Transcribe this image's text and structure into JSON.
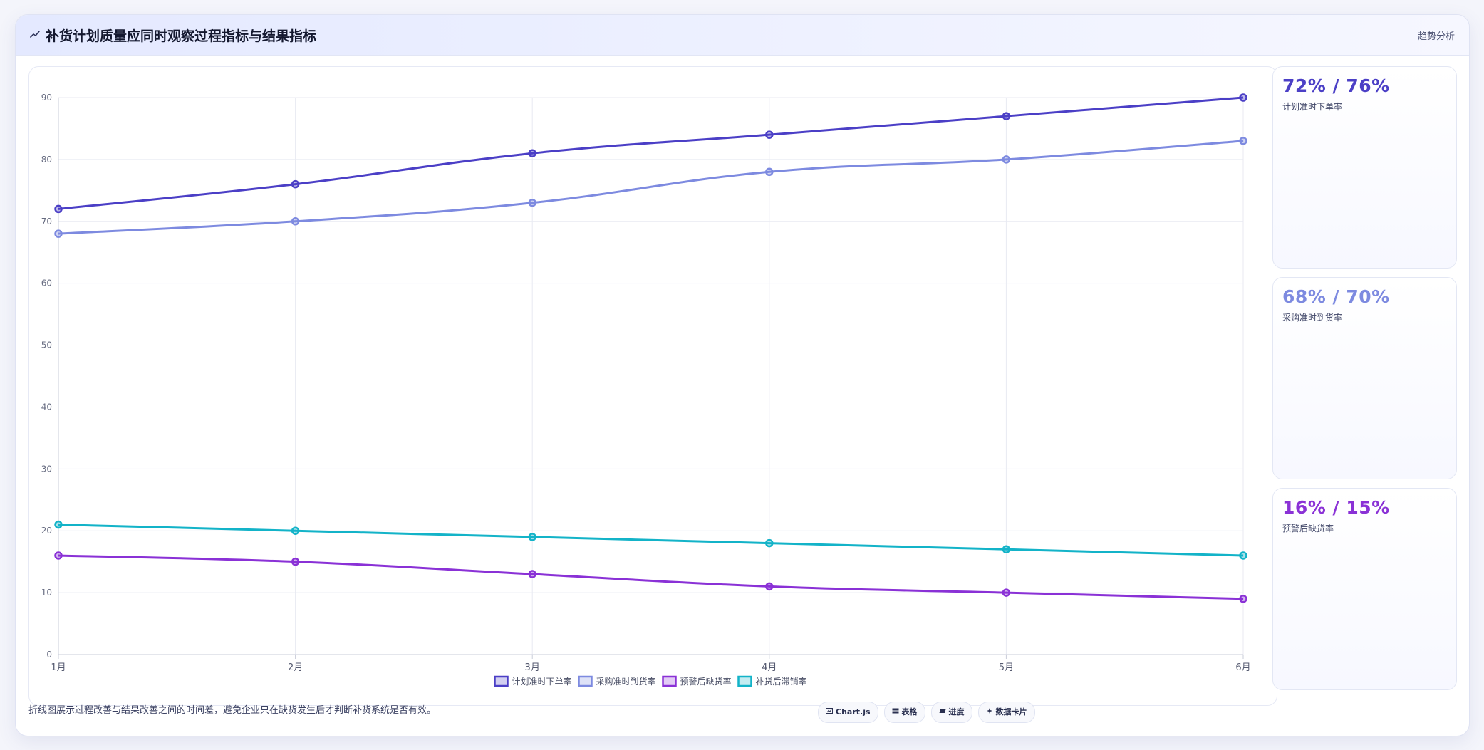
{
  "header": {
    "icon": "trend-line-icon",
    "title": "补货计划质量应同时观察过程指标与结果指标",
    "tag": "趋势分析"
  },
  "kpis": [
    {
      "value": "72% / 76%",
      "label": "计划准时下单率",
      "color": "#4b3fc6"
    },
    {
      "value": "68% / 70%",
      "label": "采购准时到货率",
      "color": "#7d8ae0"
    },
    {
      "value": "16% / 15%",
      "label": "预警后缺货率",
      "color": "#8a31d6"
    }
  ],
  "footer": {
    "note": "折线图展示过程改善与结果改善之间的时间差，避免企业只在缺货发生后才判断补货系统是否有效。",
    "chips": [
      {
        "icon": "chart-icon",
        "label": "Chart.js"
      },
      {
        "icon": "table-icon",
        "label": "表格"
      },
      {
        "icon": "progress-icon",
        "label": "进度"
      },
      {
        "icon": "sparkle-icon",
        "label": "数据卡片"
      }
    ]
  },
  "chart_data": {
    "type": "line",
    "categories": [
      "1月",
      "2月",
      "3月",
      "4月",
      "5月",
      "6月"
    ],
    "ylim": [
      0,
      90
    ],
    "yticks": [
      "0",
      "10",
      "20",
      "30",
      "40",
      "50",
      "60",
      "70",
      "80",
      "90"
    ],
    "grid": true,
    "legend_position": "bottom",
    "series": [
      {
        "name": "计划准时下单率",
        "values": [
          72,
          76,
          81,
          84,
          87,
          90
        ],
        "color": "#4b3fc6"
      },
      {
        "name": "采购准时到货率",
        "values": [
          68,
          70,
          73,
          78,
          80,
          83
        ],
        "color": "#7d8ae0"
      },
      {
        "name": "预警后缺货率",
        "values": [
          16,
          15,
          13,
          11,
          10,
          9
        ],
        "color": "#8a31d6"
      },
      {
        "name": "补货后滞销率",
        "values": [
          21,
          20,
          19,
          18,
          17,
          16
        ],
        "color": "#13b3c8"
      }
    ]
  }
}
